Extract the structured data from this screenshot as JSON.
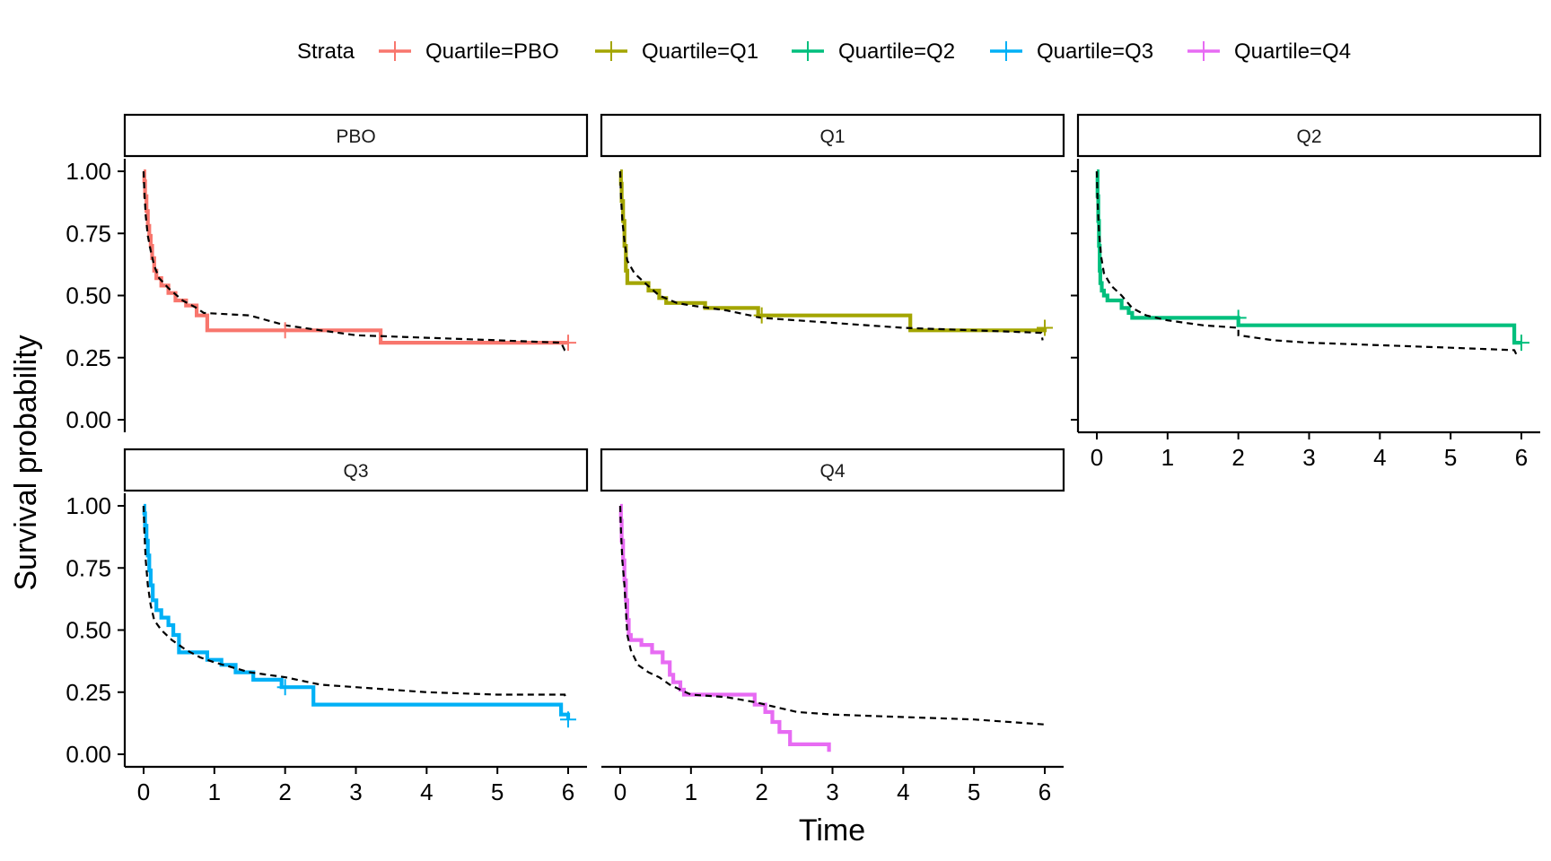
{
  "chart_data": {
    "type": "line",
    "subtype": "kaplan-meier step curves with dashed reference curve, faceted",
    "xlabel": "Time",
    "ylabel": "Survival probability",
    "legend": {
      "title": "Strata",
      "position": "top",
      "entries": [
        {
          "label": "Quartile=PBO",
          "color": "#F8766D"
        },
        {
          "label": "Quartile=Q1",
          "color": "#A3A500"
        },
        {
          "label": "Quartile=Q2",
          "color": "#00BF7D"
        },
        {
          "label": "Quartile=Q3",
          "color": "#00B0F6"
        },
        {
          "label": "Quartile=Q4",
          "color": "#E76BF3"
        }
      ]
    },
    "xlim": [
      0,
      6
    ],
    "ylim": [
      0,
      1
    ],
    "xticks": [
      "0",
      "1",
      "2",
      "3",
      "4",
      "5",
      "6"
    ],
    "yticks": [
      "0.00",
      "0.25",
      "0.50",
      "0.75",
      "1.00"
    ],
    "grid": false,
    "reference_line": {
      "style": "dashed",
      "color": "#000000"
    },
    "facets": [
      {
        "title": "PBO",
        "color": "#F8766D",
        "km": [
          [
            0,
            1.0
          ],
          [
            0.01,
            0.96
          ],
          [
            0.02,
            0.9
          ],
          [
            0.04,
            0.84
          ],
          [
            0.06,
            0.78
          ],
          [
            0.08,
            0.74
          ],
          [
            0.1,
            0.7
          ],
          [
            0.12,
            0.65
          ],
          [
            0.15,
            0.6
          ],
          [
            0.18,
            0.57
          ],
          [
            0.25,
            0.54
          ],
          [
            0.35,
            0.51
          ],
          [
            0.45,
            0.48
          ],
          [
            0.6,
            0.46
          ],
          [
            0.75,
            0.42
          ],
          [
            0.9,
            0.36
          ],
          [
            3.35,
            0.31
          ],
          [
            6.0,
            0.31
          ]
        ],
        "censor": [
          [
            2.0,
            0.36
          ],
          [
            6.0,
            0.31
          ]
        ],
        "ref": [
          [
            0,
            1.0
          ],
          [
            0.01,
            0.92
          ],
          [
            0.03,
            0.82
          ],
          [
            0.06,
            0.74
          ],
          [
            0.1,
            0.68
          ],
          [
            0.15,
            0.62
          ],
          [
            0.22,
            0.57
          ],
          [
            0.35,
            0.53
          ],
          [
            0.55,
            0.48
          ],
          [
            0.75,
            0.45
          ],
          [
            0.85,
            0.43
          ],
          [
            1.5,
            0.42
          ],
          [
            2.0,
            0.38
          ],
          [
            2.5,
            0.36
          ],
          [
            3.0,
            0.34
          ],
          [
            4.0,
            0.33
          ],
          [
            5.0,
            0.32
          ],
          [
            5.9,
            0.31
          ],
          [
            5.95,
            0.28
          ],
          [
            6.0,
            0.27
          ]
        ]
      },
      {
        "title": "Q1",
        "color": "#A3A500",
        "km": [
          [
            0,
            1.0
          ],
          [
            0.01,
            0.95
          ],
          [
            0.02,
            0.88
          ],
          [
            0.04,
            0.8
          ],
          [
            0.06,
            0.7
          ],
          [
            0.08,
            0.6
          ],
          [
            0.1,
            0.55
          ],
          [
            0.4,
            0.52
          ],
          [
            0.55,
            0.49
          ],
          [
            0.65,
            0.47
          ],
          [
            1.2,
            0.45
          ],
          [
            1.95,
            0.42
          ],
          [
            4.1,
            0.36
          ],
          [
            6.0,
            0.37
          ]
        ],
        "censor": [
          [
            2.0,
            0.42
          ],
          [
            6.0,
            0.37
          ]
        ],
        "ref": [
          [
            0,
            1.0
          ],
          [
            0.01,
            0.9
          ],
          [
            0.03,
            0.8
          ],
          [
            0.06,
            0.72
          ],
          [
            0.1,
            0.64
          ],
          [
            0.2,
            0.59
          ],
          [
            0.35,
            0.55
          ],
          [
            0.55,
            0.5
          ],
          [
            0.8,
            0.47
          ],
          [
            1.0,
            0.46
          ],
          [
            1.5,
            0.44
          ],
          [
            2.0,
            0.41
          ],
          [
            3.0,
            0.39
          ],
          [
            4.0,
            0.37
          ],
          [
            5.0,
            0.36
          ],
          [
            5.95,
            0.35
          ],
          [
            5.97,
            0.32
          ]
        ]
      },
      {
        "title": "Q2",
        "color": "#00BF7D",
        "km": [
          [
            0,
            1.0
          ],
          [
            0.01,
            0.9
          ],
          [
            0.02,
            0.8
          ],
          [
            0.03,
            0.7
          ],
          [
            0.04,
            0.6
          ],
          [
            0.05,
            0.55
          ],
          [
            0.07,
            0.52
          ],
          [
            0.1,
            0.5
          ],
          [
            0.15,
            0.48
          ],
          [
            0.35,
            0.45
          ],
          [
            0.45,
            0.43
          ],
          [
            0.5,
            0.41
          ],
          [
            2.0,
            0.38
          ],
          [
            5.9,
            0.31
          ],
          [
            6.0,
            0.31
          ]
        ],
        "censor": [
          [
            2.0,
            0.41
          ],
          [
            6.0,
            0.31
          ]
        ],
        "ref": [
          [
            0,
            1.0
          ],
          [
            0.01,
            0.88
          ],
          [
            0.03,
            0.76
          ],
          [
            0.06,
            0.66
          ],
          [
            0.1,
            0.59
          ],
          [
            0.2,
            0.54
          ],
          [
            0.35,
            0.5
          ],
          [
            0.5,
            0.45
          ],
          [
            0.7,
            0.42
          ],
          [
            1.0,
            0.4
          ],
          [
            1.5,
            0.38
          ],
          [
            2.0,
            0.37
          ],
          [
            2.0,
            0.34
          ],
          [
            2.5,
            0.32
          ],
          [
            3.0,
            0.31
          ],
          [
            4.0,
            0.3
          ],
          [
            5.0,
            0.29
          ],
          [
            5.9,
            0.28
          ],
          [
            5.95,
            0.25
          ]
        ]
      },
      {
        "title": "Q3",
        "color": "#00B0F6",
        "km": [
          [
            0,
            1.0
          ],
          [
            0.01,
            0.97
          ],
          [
            0.02,
            0.92
          ],
          [
            0.04,
            0.86
          ],
          [
            0.06,
            0.8
          ],
          [
            0.08,
            0.74
          ],
          [
            0.1,
            0.68
          ],
          [
            0.13,
            0.62
          ],
          [
            0.18,
            0.58
          ],
          [
            0.25,
            0.55
          ],
          [
            0.35,
            0.52
          ],
          [
            0.42,
            0.48
          ],
          [
            0.5,
            0.44
          ],
          [
            0.5,
            0.41
          ],
          [
            0.9,
            0.38
          ],
          [
            1.1,
            0.36
          ],
          [
            1.3,
            0.33
          ],
          [
            1.55,
            0.3
          ],
          [
            1.95,
            0.27
          ],
          [
            2.4,
            0.2
          ],
          [
            5.9,
            0.16
          ],
          [
            6.0,
            0.14
          ]
        ],
        "censor": [
          [
            2.0,
            0.27
          ],
          [
            6.0,
            0.14
          ]
        ],
        "ref": [
          [
            0,
            1.0
          ],
          [
            0.01,
            0.9
          ],
          [
            0.03,
            0.78
          ],
          [
            0.06,
            0.68
          ],
          [
            0.1,
            0.6
          ],
          [
            0.15,
            0.54
          ],
          [
            0.25,
            0.5
          ],
          [
            0.4,
            0.46
          ],
          [
            0.6,
            0.42
          ],
          [
            0.8,
            0.39
          ],
          [
            1.0,
            0.37
          ],
          [
            1.5,
            0.33
          ],
          [
            2.0,
            0.31
          ],
          [
            2.5,
            0.28
          ],
          [
            3.0,
            0.27
          ],
          [
            4.0,
            0.25
          ],
          [
            5.0,
            0.24
          ],
          [
            5.95,
            0.24
          ],
          [
            5.97,
            0.22
          ]
        ]
      },
      {
        "title": "Q4",
        "color": "#E76BF3",
        "km": [
          [
            0,
            1.0
          ],
          [
            0.01,
            0.94
          ],
          [
            0.02,
            0.86
          ],
          [
            0.04,
            0.78
          ],
          [
            0.06,
            0.7
          ],
          [
            0.08,
            0.62
          ],
          [
            0.1,
            0.54
          ],
          [
            0.12,
            0.48
          ],
          [
            0.15,
            0.46
          ],
          [
            0.3,
            0.44
          ],
          [
            0.45,
            0.41
          ],
          [
            0.6,
            0.37
          ],
          [
            0.7,
            0.32
          ],
          [
            0.75,
            0.29
          ],
          [
            0.85,
            0.26
          ],
          [
            0.9,
            0.24
          ],
          [
            1.9,
            0.2
          ],
          [
            2.05,
            0.17
          ],
          [
            2.15,
            0.13
          ],
          [
            2.25,
            0.09
          ],
          [
            2.4,
            0.04
          ],
          [
            2.95,
            0.01
          ]
        ],
        "censor": [],
        "ref": [
          [
            0,
            1.0
          ],
          [
            0.01,
            0.9
          ],
          [
            0.03,
            0.78
          ],
          [
            0.06,
            0.68
          ],
          [
            0.08,
            0.58
          ],
          [
            0.1,
            0.48
          ],
          [
            0.15,
            0.42
          ],
          [
            0.25,
            0.36
          ],
          [
            0.4,
            0.33
          ],
          [
            0.55,
            0.31
          ],
          [
            0.7,
            0.28
          ],
          [
            0.85,
            0.26
          ],
          [
            1.0,
            0.24
          ],
          [
            1.5,
            0.23
          ],
          [
            1.9,
            0.21
          ],
          [
            2.2,
            0.19
          ],
          [
            2.5,
            0.17
          ],
          [
            3.0,
            0.16
          ],
          [
            4.0,
            0.15
          ],
          [
            5.0,
            0.14
          ],
          [
            6.0,
            0.12
          ]
        ]
      }
    ]
  }
}
